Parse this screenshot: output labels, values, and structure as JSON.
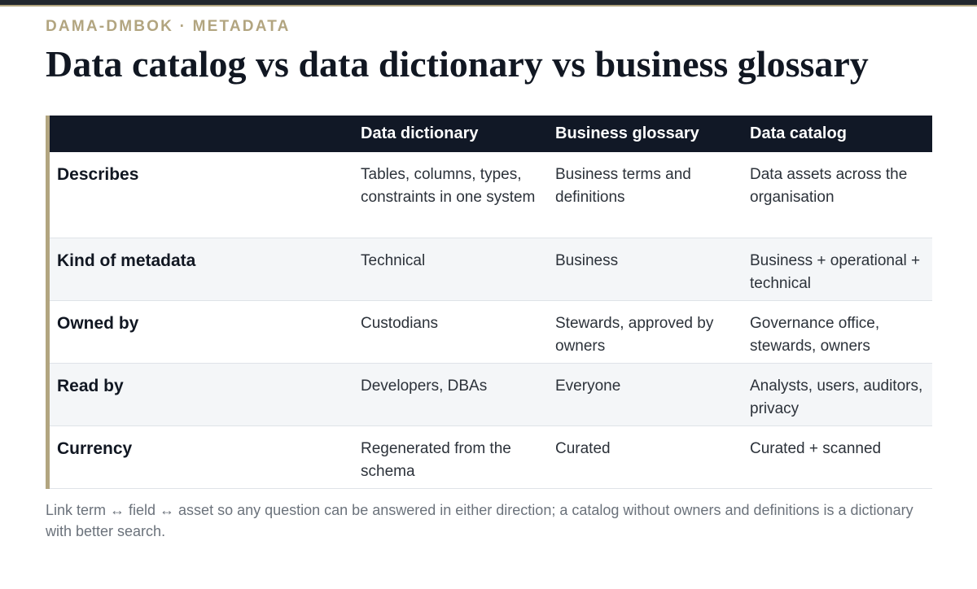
{
  "eyebrow": "DAMA-DMBOK · METADATA",
  "title": "Data catalog vs data dictionary vs business glossary",
  "table": {
    "columns": [
      "",
      "Data dictionary",
      "Business glossary",
      "Data catalog"
    ],
    "rows": [
      {
        "label": "Describes",
        "cells": [
          "Tables, columns, types, constraints in one system",
          "Business terms and definitions",
          "Data assets across the organisation"
        ]
      },
      {
        "label": "Kind of metadata",
        "cells": [
          "Technical",
          "Business",
          "Business + operational + technical"
        ]
      },
      {
        "label": "Owned by",
        "cells": [
          "Custodians",
          "Stewards, approved by owners",
          "Governance office, stewards, owners"
        ]
      },
      {
        "label": "Read by",
        "cells": [
          "Developers, DBAs",
          "Everyone",
          "Analysts, users, auditors, privacy"
        ]
      },
      {
        "label": "Currency",
        "cells": [
          "Regenerated from the schema",
          "Curated",
          "Curated + scanned"
        ]
      }
    ]
  },
  "footnote": "Link term ↔ field ↔ asset so any question can be answered in either direction; a catalog without owners and definitions is a dictionary with better search.",
  "colors": {
    "accent": "#b2a580",
    "header_bg": "#111826",
    "title": "#111722",
    "alt_row": "#f4f6f8",
    "muted_text": "#6b727b"
  }
}
